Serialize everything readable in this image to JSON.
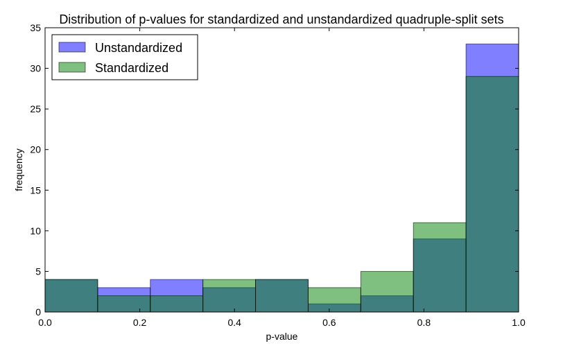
{
  "chart_data": {
    "type": "bar",
    "title": "Distribution of p-values for standardized and unstandardized quadruple-split sets",
    "xlabel": "p-value",
    "ylabel": "frequency",
    "xlim": [
      0.0,
      1.0
    ],
    "ylim": [
      0,
      35
    ],
    "grid": false,
    "legend_position": "top-left",
    "bin_edges": [
      0.0,
      0.1111,
      0.2222,
      0.3333,
      0.4444,
      0.5556,
      0.6667,
      0.7778,
      0.8889,
      1.0
    ],
    "x_ticks": [
      {
        "value": 0.0,
        "label": "0.0"
      },
      {
        "value": 0.2,
        "label": "0.2"
      },
      {
        "value": 0.4,
        "label": "0.4"
      },
      {
        "value": 0.6,
        "label": "0.6"
      },
      {
        "value": 0.8,
        "label": "0.8"
      },
      {
        "value": 1.0,
        "label": "1.0"
      }
    ],
    "y_ticks": [
      {
        "value": 0,
        "label": "0"
      },
      {
        "value": 5,
        "label": "5"
      },
      {
        "value": 10,
        "label": "10"
      },
      {
        "value": 15,
        "label": "15"
      },
      {
        "value": 20,
        "label": "20"
      },
      {
        "value": 25,
        "label": "25"
      },
      {
        "value": 30,
        "label": "30"
      },
      {
        "value": 35,
        "label": "35"
      }
    ],
    "series": [
      {
        "name": "Unstandardized",
        "color": "#0000ff",
        "opacity": 0.5,
        "values": [
          4,
          3,
          4,
          3,
          4,
          1,
          2,
          9,
          33
        ]
      },
      {
        "name": "Standardized",
        "color": "#008000",
        "opacity": 0.5,
        "values": [
          4,
          2,
          2,
          4,
          4,
          3,
          5,
          11,
          29
        ]
      }
    ]
  }
}
